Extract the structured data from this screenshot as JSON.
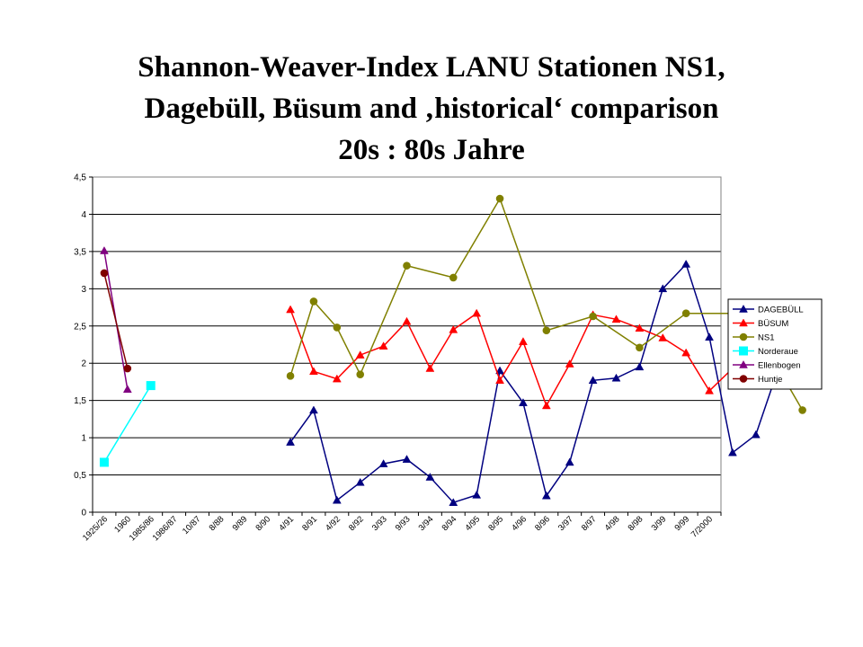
{
  "slide": {
    "title_line1": "Shannon-Weaver-Index LANU Stationen NS1,",
    "title_line2": "Dagebüll, Büsum and ‚historical‘ comparison",
    "title_line3": "20s : 80s Jahre"
  },
  "chart_data": {
    "type": "line",
    "title": "",
    "xlabel": "",
    "ylabel": "",
    "ylim": [
      0,
      4.5
    ],
    "yticks": [
      "0",
      "0,5",
      "1",
      "1,5",
      "2",
      "2,5",
      "3",
      "3,5",
      "4",
      "4,5"
    ],
    "grid": true,
    "legend_position": "right",
    "categories": [
      "1925/26",
      "1960",
      "1985/86",
      "1986/87",
      "10/87",
      "8/88",
      "9/89",
      "8/90",
      "4/91",
      "8/91",
      "4/92",
      "8/92",
      "3/93",
      "9/93",
      "3/94",
      "8/94",
      "4/95",
      "8/95",
      "4/96",
      "8/96",
      "3/97",
      "8/97",
      "4/98",
      "8/98",
      "3/99",
      "9/99",
      "7/2000"
    ],
    "series": [
      {
        "name": "DAGEBÜLL",
        "color": "#000080",
        "marker": "triangle",
        "points": [
          [
            8.5,
            0.94
          ],
          [
            9.5,
            1.37
          ],
          [
            10.5,
            0.16
          ],
          [
            11.5,
            0.4
          ],
          [
            12.5,
            0.65
          ],
          [
            13.5,
            0.71
          ],
          [
            14.5,
            0.47
          ],
          [
            15.5,
            0.13
          ],
          [
            16.5,
            0.23
          ],
          [
            17.5,
            1.9
          ],
          [
            18.5,
            1.47
          ],
          [
            19.5,
            0.22
          ],
          [
            20.5,
            0.67
          ],
          [
            21.5,
            1.77
          ],
          [
            22.5,
            1.8
          ],
          [
            23.5,
            1.95
          ],
          [
            24.5,
            3.0
          ],
          [
            25.5,
            3.33
          ],
          [
            26.5,
            2.35
          ],
          [
            27.5,
            0.8
          ],
          [
            28.5,
            1.04
          ],
          [
            29.5,
            1.96
          ]
        ]
      },
      {
        "name": "BÜSUM",
        "color": "#ff0000",
        "marker": "triangle",
        "points": [
          [
            8.5,
            2.72
          ],
          [
            9.5,
            1.89
          ],
          [
            10.5,
            1.79
          ],
          [
            11.5,
            2.11
          ],
          [
            12.5,
            2.23
          ],
          [
            13.5,
            2.56
          ],
          [
            14.5,
            1.93
          ],
          [
            15.5,
            2.45
          ],
          [
            16.5,
            2.67
          ],
          [
            17.5,
            1.77
          ],
          [
            18.5,
            2.29
          ],
          [
            19.5,
            1.43
          ],
          [
            20.5,
            1.99
          ],
          [
            21.5,
            2.65
          ],
          [
            22.5,
            2.59
          ],
          [
            23.5,
            2.47
          ],
          [
            24.5,
            2.34
          ],
          [
            25.5,
            2.14
          ],
          [
            26.5,
            1.63
          ],
          [
            27.5,
            1.93
          ],
          [
            28.5,
            2.04
          ],
          [
            29.5,
            2.69
          ]
        ]
      },
      {
        "name": "NS1",
        "color": "#808000",
        "marker": "circle",
        "points": [
          [
            8.5,
            1.83
          ],
          [
            9.5,
            2.83
          ],
          [
            10.5,
            2.48
          ],
          [
            11.5,
            1.85
          ],
          [
            13.5,
            3.31
          ],
          [
            15.5,
            3.15
          ],
          [
            17.5,
            4.21
          ],
          [
            19.5,
            2.44
          ],
          [
            21.5,
            2.63
          ],
          [
            23.5,
            2.21
          ],
          [
            25.5,
            2.67
          ],
          [
            27.5,
            2.67
          ],
          [
            29.5,
            1.91
          ],
          [
            30.5,
            1.37
          ]
        ]
      },
      {
        "name": "Norderaue",
        "color": "#00ffff",
        "marker": "square",
        "points": [
          [
            0.5,
            0.67
          ],
          [
            2.5,
            1.7
          ]
        ]
      },
      {
        "name": "Ellenbogen",
        "color": "#800080",
        "marker": "triangle",
        "points": [
          [
            0.5,
            3.51
          ],
          [
            1.5,
            1.65
          ]
        ]
      },
      {
        "name": "Huntje",
        "color": "#800000",
        "marker": "circle",
        "points": [
          [
            0.5,
            3.21
          ],
          [
            1.5,
            1.93
          ]
        ]
      }
    ]
  }
}
